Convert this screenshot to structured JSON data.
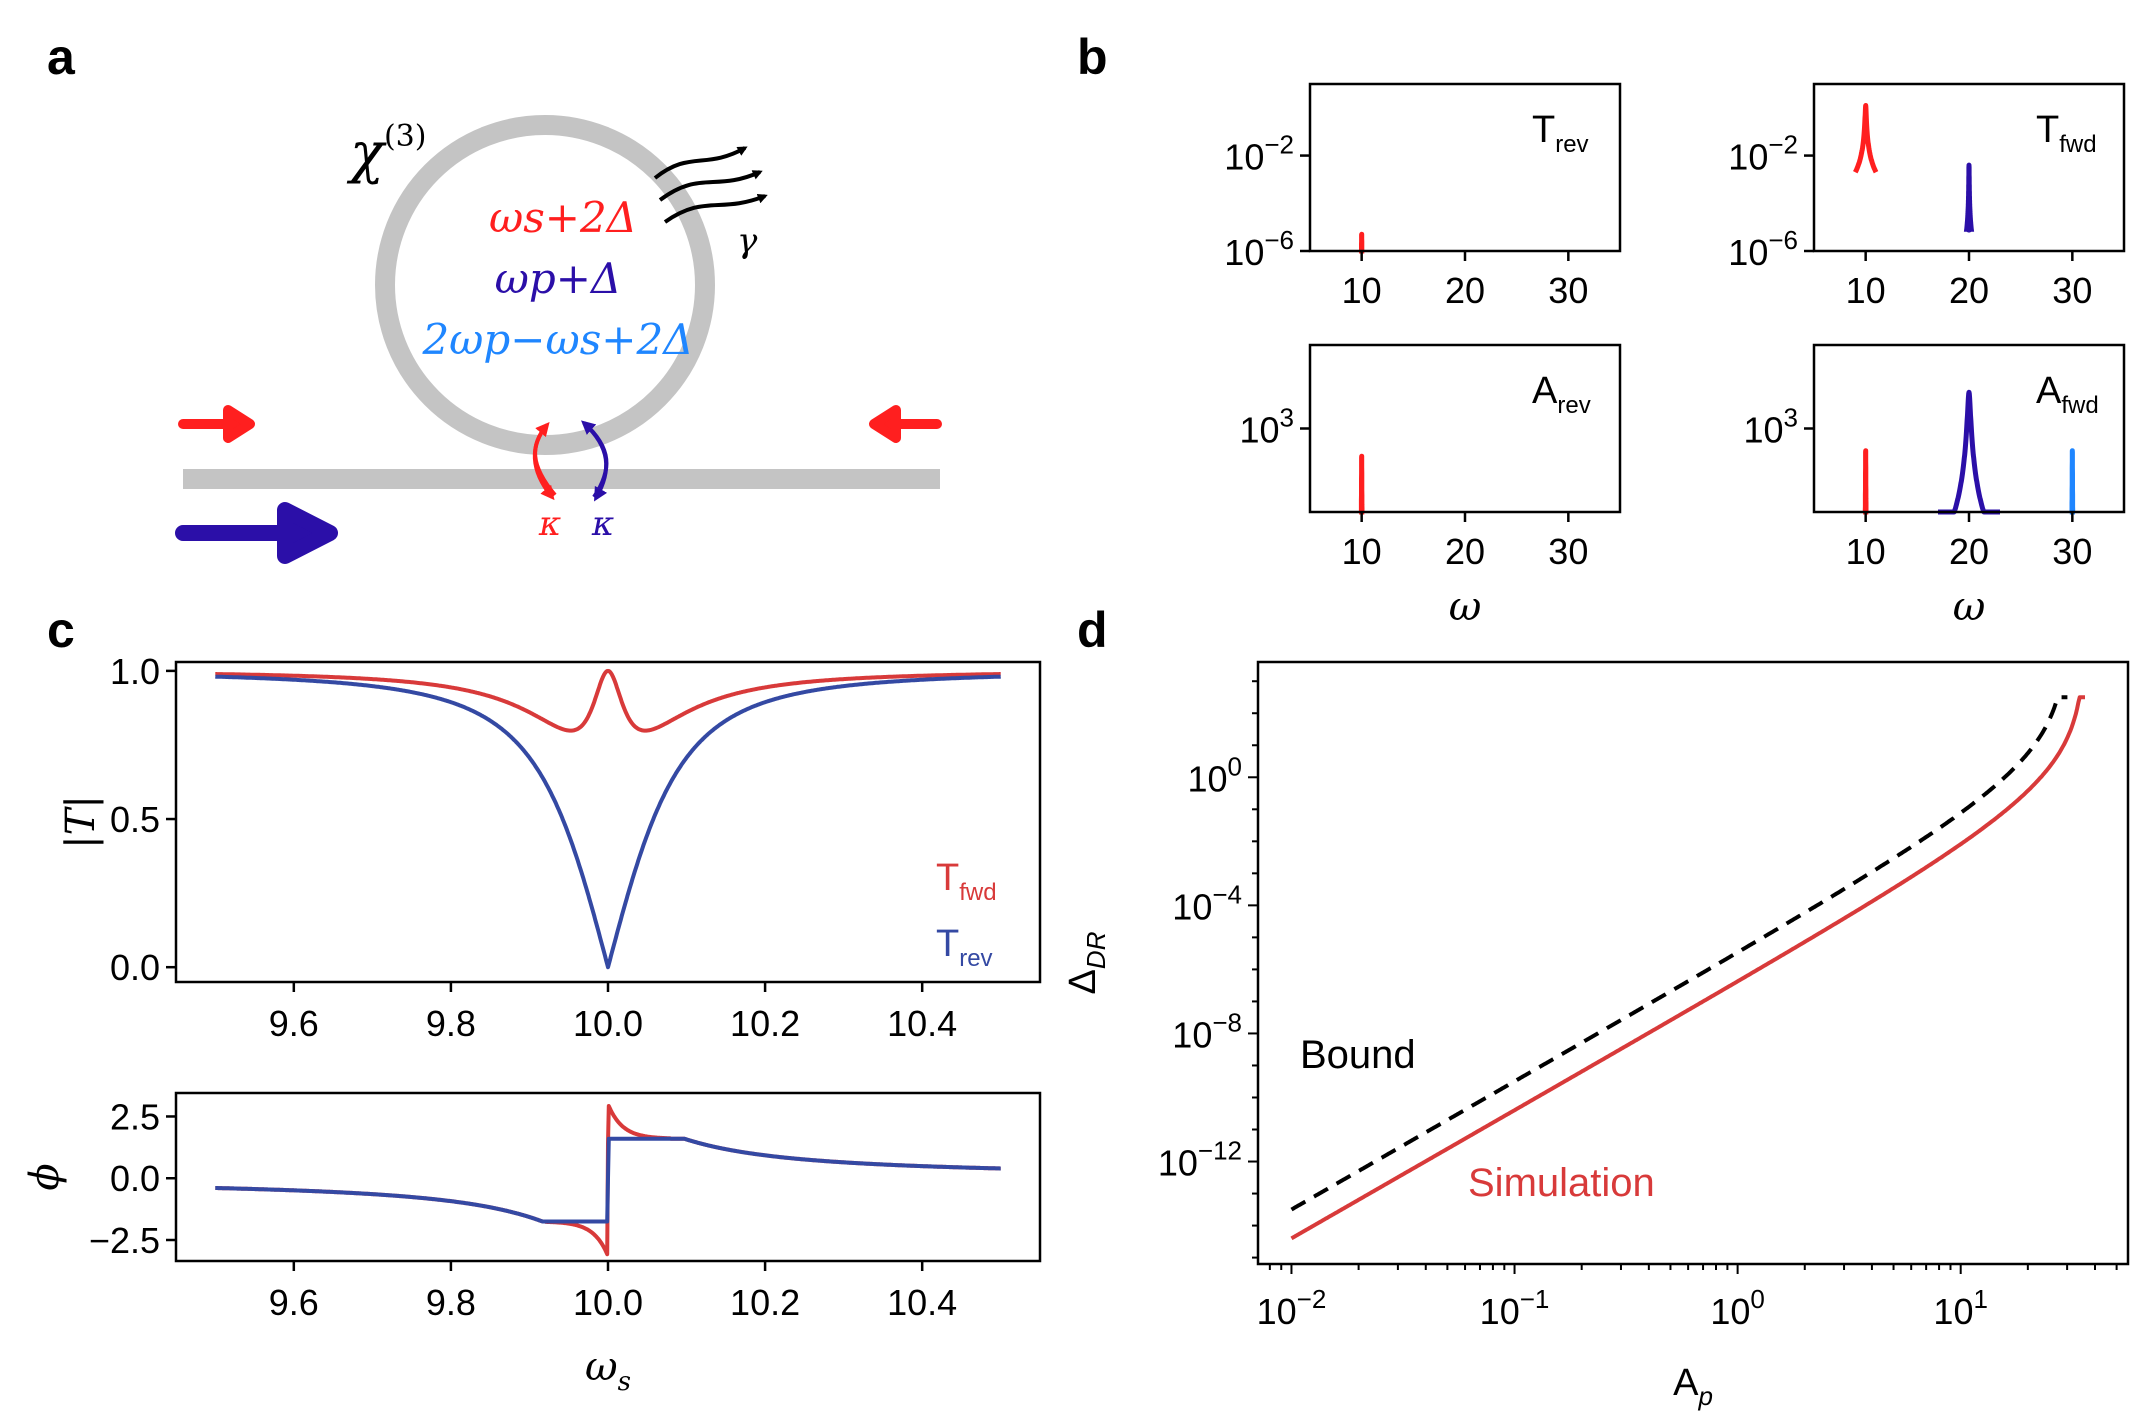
{
  "colors": {
    "signal": "#ff1f1f",
    "pump": "#2b0fa8",
    "idler": "#1f86ff",
    "fwd": "#d83a3a",
    "rev": "#3449a3",
    "ring": "#c4c4c4",
    "bound": "#000000",
    "simulation": "#d83a3a"
  },
  "panel_labels": {
    "a": "a",
    "b": "b",
    "c": "c",
    "d": "d"
  },
  "panel_a": {
    "chi_symbol": "χ",
    "chi_superscript": "(3)",
    "mode_signal": "ωs+2Δ",
    "mode_pump": "ωp+Δ",
    "mode_idler": "2ωp−ωs+2Δ",
    "loss_label": "γ",
    "kappa_signal": "κ",
    "kappa_pump": "κ"
  },
  "chart_data": [
    {
      "id": "b_T_rev",
      "type": "line",
      "label": "T",
      "label_sub": "rev",
      "xlim": [
        5,
        35
      ],
      "xticks": [
        "10",
        "20",
        "30"
      ],
      "xlabel": "",
      "yscale": "log",
      "ylim_exp": [
        -6,
        1
      ],
      "yticks": [
        {
          "exp": -2,
          "base": "10",
          "sup": "−2"
        },
        {
          "exp": -6,
          "base": "10",
          "sup": "−6"
        }
      ],
      "series": [
        {
          "name": "signal",
          "color": "signal",
          "peaks": [
            {
              "x": 10,
              "log_peak": -5.3,
              "width": 0.01
            }
          ]
        }
      ]
    },
    {
      "id": "b_T_fwd",
      "type": "line",
      "label": "T",
      "label_sub": "fwd",
      "xlim": [
        5,
        35
      ],
      "xticks": [
        "10",
        "20",
        "30"
      ],
      "xlabel": "",
      "yscale": "log",
      "ylim_exp": [
        -6,
        1
      ],
      "yticks": [
        {
          "exp": -2,
          "base": "10",
          "sup": "−2"
        },
        {
          "exp": -6,
          "base": "10",
          "sup": "−6"
        }
      ],
      "series": [
        {
          "name": "signal",
          "color": "signal",
          "peaks": [
            {
              "x": 10,
              "log_peak": 0.1,
              "width": 0.04
            }
          ]
        },
        {
          "name": "pump",
          "color": "pump",
          "peaks": [
            {
              "x": 20,
              "log_peak": -2.4,
              "width": 0.01
            }
          ]
        }
      ]
    },
    {
      "id": "b_A_rev",
      "type": "line",
      "label": "A",
      "label_sub": "rev",
      "xlim": [
        5,
        35
      ],
      "xticks": [
        "10",
        "20",
        "30"
      ],
      "xlabel": "ω",
      "yscale": "log",
      "ylim_exp": [
        1.5,
        4.5
      ],
      "yticks": [
        {
          "exp": 3,
          "base": "10",
          "sup": "3"
        }
      ],
      "series": [
        {
          "name": "signal",
          "color": "signal",
          "peaks": [
            {
              "x": 10,
              "log_peak": 2.5,
              "width": 0.01
            }
          ]
        }
      ]
    },
    {
      "id": "b_A_fwd",
      "type": "line",
      "label": "A",
      "label_sub": "fwd",
      "xlim": [
        5,
        35
      ],
      "xticks": [
        "10",
        "20",
        "30"
      ],
      "xlabel": "ω",
      "yscale": "log",
      "ylim_exp": [
        1.5,
        4.5
      ],
      "yticks": [
        {
          "exp": 3,
          "base": "10",
          "sup": "3"
        }
      ],
      "series": [
        {
          "name": "signal",
          "color": "signal",
          "peaks": [
            {
              "x": 10,
              "log_peak": 2.6,
              "width": 0.01
            }
          ]
        },
        {
          "name": "pump",
          "color": "pump",
          "peaks": [
            {
              "x": 20,
              "log_peak": 3.65,
              "width": 0.12
            }
          ]
        },
        {
          "name": "idler",
          "color": "idler",
          "peaks": [
            {
              "x": 30,
              "log_peak": 2.6,
              "width": 0.01
            }
          ]
        }
      ]
    },
    {
      "id": "c_abs",
      "type": "line",
      "ylabel": "|T|",
      "xlabel": "",
      "xlim": [
        9.45,
        10.55
      ],
      "ylim": [
        -0.05,
        1.03
      ],
      "xticks": [
        "9.6",
        "9.8",
        "10.0",
        "10.2",
        "10.4"
      ],
      "yticks": [
        "0.0",
        "0.5",
        "1.0"
      ],
      "model": {
        "omega0": 10.0,
        "gamma": 0.1,
        "split": 0.025
      },
      "legend": [
        {
          "label": "T",
          "sub": "fwd",
          "color": "fwd"
        },
        {
          "label": "T",
          "sub": "rev",
          "color": "rev"
        }
      ],
      "series": [
        {
          "name": "T_fwd",
          "color": "fwd"
        },
        {
          "name": "T_rev",
          "color": "rev"
        }
      ]
    },
    {
      "id": "c_phase",
      "type": "line",
      "ylabel": "ϕ",
      "xlabel": "ωs",
      "xlim": [
        9.45,
        10.55
      ],
      "ylim": [
        -3.35,
        3.45
      ],
      "xticks": [
        "9.6",
        "9.8",
        "10.0",
        "10.2",
        "10.4"
      ],
      "yticks": [
        "−2.5",
        "0.0",
        "2.5"
      ],
      "series": [
        {
          "name": "T_fwd",
          "color": "fwd"
        },
        {
          "name": "T_rev",
          "color": "rev"
        }
      ]
    },
    {
      "id": "d_bound",
      "type": "line",
      "xscale": "log",
      "yscale": "log",
      "xlabel": "Ap",
      "ylabel": "ΔDR",
      "xlim_exp": [
        -2.15,
        1.75
      ],
      "ylim_exp": [
        -15.2,
        3.6
      ],
      "xticks": [
        {
          "exp": -2,
          "base": "10",
          "sup": "−2"
        },
        {
          "exp": -1,
          "base": "10",
          "sup": "−1"
        },
        {
          "exp": 0,
          "base": "10",
          "sup": "0"
        },
        {
          "exp": 1,
          "base": "10",
          "sup": "1"
        }
      ],
      "yticks": [
        {
          "exp": 0,
          "base": "10",
          "sup": "0"
        },
        {
          "exp": -4,
          "base": "10",
          "sup": "−4"
        },
        {
          "exp": -8,
          "base": "10",
          "sup": "−8"
        },
        {
          "exp": -12,
          "base": "10",
          "sup": "−12"
        }
      ],
      "series": [
        {
          "name": "Bound",
          "label": "Bound",
          "color": "bound",
          "dash": true,
          "x_exp_start": -2,
          "y_exp_start": -13.5,
          "slope": 4,
          "x_divergence": 30
        },
        {
          "name": "Simulation",
          "label": "Simulation",
          "color": "simulation",
          "dash": false,
          "x_exp_start": -2,
          "y_exp_start": -14.4,
          "slope": 4,
          "x_divergence": 36
        }
      ]
    }
  ]
}
